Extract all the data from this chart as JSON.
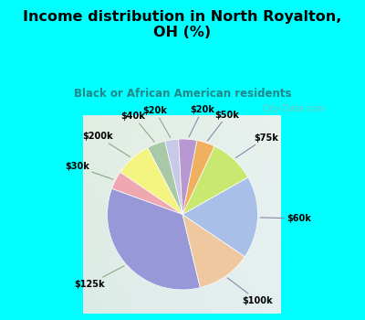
{
  "title": "Income distribution in North Royalton,\nOH (%)",
  "subtitle": "Black or African American residents",
  "labels": [
    "$20k",
    "$40k",
    "$200k",
    "$30k",
    "$125k",
    "$100k",
    "$60k",
    "$75k",
    "$50k",
    "$20k"
  ],
  "sizes": [
    3,
    4,
    8,
    4,
    35,
    12,
    18,
    10,
    4,
    4
  ],
  "colors": [
    "#c8c8e8",
    "#a8c8a8",
    "#f4f480",
    "#f0a8b0",
    "#9898d8",
    "#f0c8a0",
    "#a8c0e8",
    "#c8e870",
    "#f0b060",
    "#b898d0"
  ],
  "bg_cyan": "#00ffff",
  "bg_chart_tl": "#e0ede0",
  "bg_chart_br": "#d0e8e8",
  "title_color": "#000000",
  "subtitle_color": "#208888",
  "label_color": "#000000",
  "startangle": 93,
  "watermark": "City-Data.com"
}
